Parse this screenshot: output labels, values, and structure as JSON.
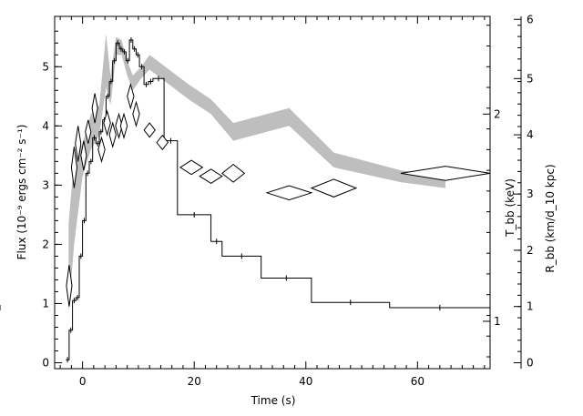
{
  "chart_data": {
    "type": "line",
    "xlabel": "Time (s)",
    "ylabel": "Flux (10⁻⁹ ergs cm⁻² s⁻¹)",
    "right_axis_1_label": "T_bb (keV)",
    "right_axis_2_label": "R_bb (km/d_10 kpc)",
    "xlim": [
      -5,
      73
    ],
    "ylim": [
      -0.1,
      5.85
    ],
    "x_ticks": [
      0,
      20,
      40,
      60
    ],
    "y_ticks": [
      0,
      1,
      2,
      3,
      4,
      5
    ],
    "right_axis_1_ticks": [
      {
        "label": "2",
        "flux": 4.2
      },
      {
        "label": "1",
        "flux": 0.7
      }
    ],
    "right_axis_2_ticks": [
      {
        "label": "0",
        "flux": 0.0
      },
      {
        "label": "1",
        "flux": 0.95
      },
      {
        "label": "2",
        "flux": 1.9
      },
      {
        "label": "3",
        "flux": 2.85
      },
      {
        "label": "4",
        "flux": 3.85
      },
      {
        "label": "5",
        "flux": 4.8
      },
      {
        "label": "6",
        "flux": 5.8
      }
    ],
    "series": [
      {
        "style": "flux-histogram",
        "color": "#000000",
        "x_edges": [
          -3.0,
          -2.4,
          -1.8,
          -1.2,
          -0.6,
          0.0,
          0.6,
          1.2,
          1.8,
          2.4,
          3.0,
          3.6,
          4.2,
          4.8,
          5.4,
          6.0,
          6.6,
          7.2,
          7.8,
          8.4,
          9.0,
          9.6,
          10.2,
          11.0,
          11.8,
          12.6,
          14.6,
          17.0,
          23.0,
          25.0,
          32.0,
          41.0,
          55.0,
          73.0
        ],
        "y": [
          0.05,
          0.55,
          1.05,
          1.1,
          1.8,
          2.4,
          3.2,
          3.4,
          3.8,
          3.7,
          3.9,
          4.1,
          4.5,
          4.75,
          5.1,
          5.4,
          5.3,
          5.25,
          5.1,
          5.45,
          5.3,
          5.2,
          5.0,
          4.7,
          4.75,
          4.8,
          3.75,
          2.5,
          2.05,
          1.8,
          1.43,
          1.02,
          0.93,
          0.93
        ]
      },
      {
        "style": "temperature-band",
        "color": "#bebebe",
        "x": [
          -2.5,
          -1.5,
          0.0,
          1.5,
          3.0,
          4.2,
          5.0,
          6.0,
          7.0,
          8.0,
          9.0,
          10.5,
          12.0,
          19.0,
          23.0,
          27.0,
          37.0,
          45.0,
          57.0,
          65.0
        ],
        "y_low": [
          0.85,
          2.0,
          3.15,
          3.6,
          3.85,
          4.65,
          4.35,
          5.2,
          5.2,
          4.85,
          4.6,
          4.8,
          4.95,
          4.45,
          4.2,
          3.75,
          4.0,
          3.3,
          3.05,
          2.95
        ],
        "y_high": [
          2.35,
          3.45,
          3.7,
          4.2,
          4.35,
          5.55,
          4.85,
          5.5,
          5.45,
          5.1,
          4.85,
          5.0,
          5.2,
          4.7,
          4.45,
          4.05,
          4.3,
          3.55,
          3.25,
          3.15
        ]
      },
      {
        "style": "radius-diamonds",
        "color": "#000000",
        "points": [
          {
            "x": -2.4,
            "y": 1.3,
            "dx": 0.5,
            "dy": 0.35
          },
          {
            "x": -1.5,
            "y": 3.3,
            "dx": 0.5,
            "dy": 0.35
          },
          {
            "x": -0.8,
            "y": 3.7,
            "dx": 0.5,
            "dy": 0.3
          },
          {
            "x": 0.2,
            "y": 3.5,
            "dx": 0.5,
            "dy": 0.25
          },
          {
            "x": 1.0,
            "y": 3.9,
            "dx": 0.5,
            "dy": 0.2
          },
          {
            "x": 2.2,
            "y": 4.3,
            "dx": 0.5,
            "dy": 0.25
          },
          {
            "x": 3.4,
            "y": 3.6,
            "dx": 0.6,
            "dy": 0.2
          },
          {
            "x": 4.4,
            "y": 4.05,
            "dx": 0.6,
            "dy": 0.2
          },
          {
            "x": 5.4,
            "y": 3.85,
            "dx": 0.6,
            "dy": 0.2
          },
          {
            "x": 6.5,
            "y": 4.0,
            "dx": 0.6,
            "dy": 0.2
          },
          {
            "x": 7.4,
            "y": 4.0,
            "dx": 0.6,
            "dy": 0.2
          },
          {
            "x": 8.6,
            "y": 4.5,
            "dx": 0.6,
            "dy": 0.2
          },
          {
            "x": 9.6,
            "y": 4.2,
            "dx": 0.6,
            "dy": 0.2
          },
          {
            "x": 12.0,
            "y": 3.93,
            "dx": 1.0,
            "dy": 0.12
          },
          {
            "x": 14.3,
            "y": 3.72,
            "dx": 1.0,
            "dy": 0.12
          },
          {
            "x": 19.5,
            "y": 3.3,
            "dx": 2.0,
            "dy": 0.12
          },
          {
            "x": 23.0,
            "y": 3.15,
            "dx": 2.0,
            "dy": 0.12
          },
          {
            "x": 27.0,
            "y": 3.2,
            "dx": 2.0,
            "dy": 0.15
          },
          {
            "x": 37.0,
            "y": 2.87,
            "dx": 4.0,
            "dy": 0.12
          },
          {
            "x": 45.0,
            "y": 2.95,
            "dx": 4.0,
            "dy": 0.15
          },
          {
            "x": 65.0,
            "y": 3.2,
            "dx": 8.0,
            "dy": 0.12
          }
        ]
      }
    ]
  }
}
